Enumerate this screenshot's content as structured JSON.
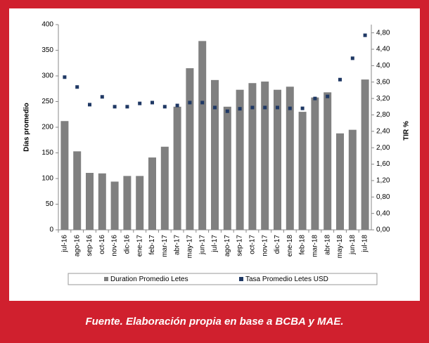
{
  "chart_data": {
    "type": "bar_line",
    "ylabel": "Días promedio",
    "y2label": "TIR %",
    "categories": [
      "jul-16",
      "ago-16",
      "sep-16",
      "oct-16",
      "nov-16",
      "dic-16",
      "ene-17",
      "feb-17",
      "mar-17",
      "abr-17",
      "may-17",
      "jun-17",
      "jul-17",
      "ago-17",
      "sep-17",
      "oct-17",
      "nov-17",
      "dic-17",
      "ene-18",
      "feb-18",
      "mar-18",
      "abr-18",
      "may-18",
      "jun-18",
      "jul-18"
    ],
    "series": [
      {
        "name": "Duration Promedio Letes",
        "color": "#808080",
        "kind": "bar",
        "values": [
          212,
          153,
          111,
          110,
          94,
          105,
          105,
          141,
          162,
          240,
          315,
          368,
          292,
          240,
          273,
          286,
          289,
          273,
          279,
          230,
          258,
          268,
          188,
          195,
          293
        ]
      },
      {
        "name": "Tasa Promedio Letes USD",
        "color": "#1f3864",
        "kind": "marker",
        "axis": "y2",
        "values": [
          3.72,
          3.48,
          3.05,
          3.24,
          3.0,
          3.0,
          3.08,
          3.1,
          3.0,
          3.03,
          3.1,
          3.1,
          2.98,
          2.89,
          2.95,
          2.98,
          2.98,
          2.98,
          2.96,
          2.96,
          3.2,
          3.25,
          3.66,
          4.18,
          4.74
        ]
      }
    ],
    "ylim": [
      0,
      400
    ],
    "yticks": [
      0,
      50,
      100,
      150,
      200,
      250,
      300,
      350,
      400
    ],
    "y2lim": [
      0,
      5
    ],
    "y2ticks": [
      {
        "value": 0,
        "label": "0,00"
      },
      {
        "value": 0.4,
        "label": "0,40"
      },
      {
        "value": 0.8,
        "label": "0,80"
      },
      {
        "value": 1.2,
        "label": "1,20"
      },
      {
        "value": 1.6,
        "label": "1,60"
      },
      {
        "value": 2.0,
        "label": "2,00"
      },
      {
        "value": 2.4,
        "label": "2,40"
      },
      {
        "value": 2.8,
        "label": "2,80"
      },
      {
        "value": 3.2,
        "label": "3,20"
      },
      {
        "value": 3.6,
        "label": "3,60"
      },
      {
        "value": 4.0,
        "label": "4,00"
      },
      {
        "value": 4.4,
        "label": "4,40"
      },
      {
        "value": 4.8,
        "label": "4,80"
      }
    ],
    "legend": "bottom"
  },
  "footer": "Fuente. Elaboración propia en base a BCBA y MAE."
}
